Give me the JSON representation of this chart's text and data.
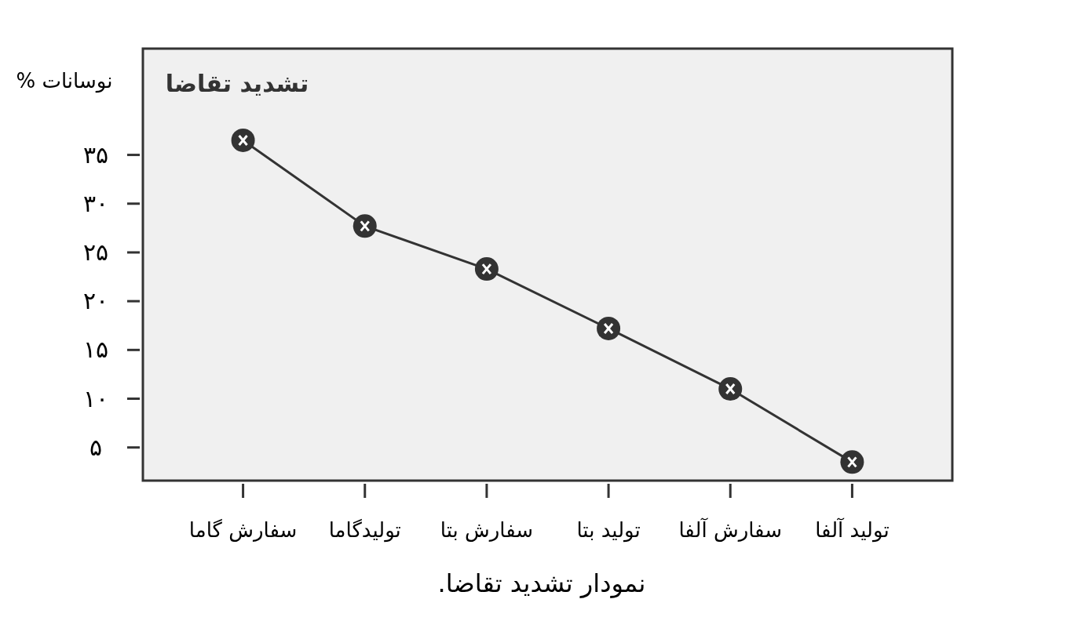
{
  "chart_data": {
    "type": "line",
    "title": "تشدید تقاضا",
    "ylabel": "نوسانات %",
    "annotations": [
      "نمودار تشدید تقاضا."
    ],
    "categories": [
      "سفارش گاما",
      "تولیدگاما",
      "سفارش بتا",
      "تولید بتا",
      "سفارش آلفا",
      "تولید آلفا"
    ],
    "series": [
      {
        "color": "#333333",
        "values": [
          36.5,
          27.7,
          23.3,
          17.2,
          11.0,
          3.5
        ]
      }
    ],
    "ylim": [
      1.6,
      45.9
    ],
    "yticks": [
      {
        "value": 5,
        "label": "۵"
      },
      {
        "value": 10,
        "label": "۱۰"
      },
      {
        "value": 15,
        "label": "۱۵"
      },
      {
        "value": 20,
        "label": "۲۰"
      },
      {
        "value": 25,
        "label": "۲۵"
      },
      {
        "value": 30,
        "label": "۳۰"
      },
      {
        "value": 35,
        "label": "۳۵"
      }
    ],
    "grid": false,
    "marker": "circle",
    "line_style": "solid"
  }
}
